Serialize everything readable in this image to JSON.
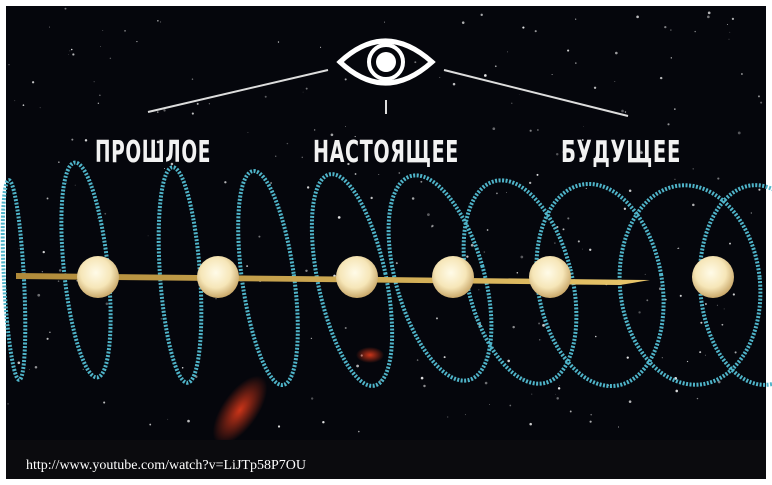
{
  "labels": {
    "past": "ПРОШЛОЕ",
    "present": "НАСТОЯЩЕЕ",
    "future": "БУДУЩЕЕ"
  },
  "caption": "http://www.youtube.com/watch?v=LiJTp58P7OU"
}
